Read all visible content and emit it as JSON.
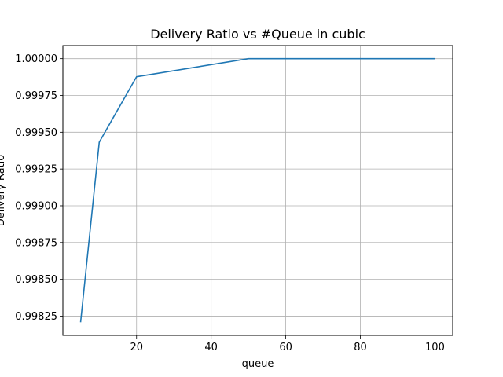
{
  "chart_data": {
    "type": "line",
    "title": "Delivery Ratio vs #Queue in cubic",
    "xlabel": "queue",
    "ylabel": "Delivery Ratio",
    "xlim": [
      0.25,
      104.75
    ],
    "ylim": [
      0.998119,
      1.000089
    ],
    "xticks": [
      20,
      40,
      60,
      80,
      100
    ],
    "xtick_labels": [
      "20",
      "40",
      "60",
      "80",
      "100"
    ],
    "yticks": [
      0.99825,
      0.9985,
      0.99875,
      0.999,
      0.99925,
      0.9995,
      0.99975,
      1.0
    ],
    "ytick_labels": [
      "0.99825",
      "0.99850",
      "0.99875",
      "0.99900",
      "0.99925",
      "0.99950",
      "0.99975",
      "1.00000"
    ],
    "grid": true,
    "colors": {
      "line": "#1f77b4",
      "grid": "#b0b0b0",
      "axes": "#000000"
    },
    "series": [
      {
        "x": [
          5,
          10,
          20,
          50,
          100
        ],
        "values": [
          0.998208,
          0.999432,
          0.999877,
          1.0,
          1.0
        ]
      }
    ]
  }
}
